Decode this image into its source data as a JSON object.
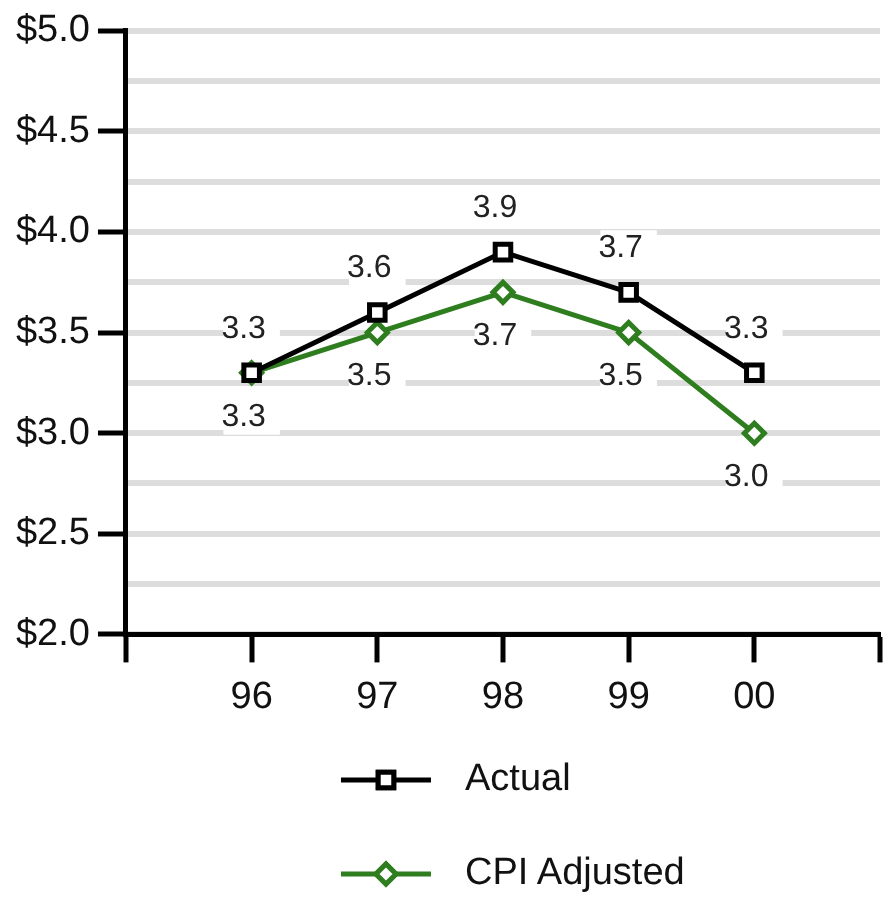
{
  "chart_data": {
    "type": "line",
    "categories": [
      "96",
      "97",
      "98",
      "99",
      "00"
    ],
    "series": [
      {
        "name": "Actual",
        "color": "#000000",
        "marker": "square",
        "values": [
          3.3,
          3.6,
          3.9,
          3.7,
          3.3
        ],
        "value_labels": [
          "3.3",
          "3.6",
          "3.9",
          "3.7",
          "3.3"
        ]
      },
      {
        "name": "CPI Adjusted",
        "color": "#2e7d1e",
        "marker": "diamond",
        "values": [
          3.3,
          3.5,
          3.7,
          3.5,
          3.0
        ],
        "value_labels": [
          "3.3",
          "3.5",
          "3.7",
          "3.5",
          "3.0"
        ]
      }
    ],
    "ylim": [
      2.0,
      5.0
    ],
    "yticks": [
      {
        "value": 2.0,
        "label": "$2.0"
      },
      {
        "value": 2.25,
        "label": null
      },
      {
        "value": 2.5,
        "label": "$2.5"
      },
      {
        "value": 2.75,
        "label": null
      },
      {
        "value": 3.0,
        "label": "$3.0"
      },
      {
        "value": 3.25,
        "label": null
      },
      {
        "value": 3.5,
        "label": "$3.5"
      },
      {
        "value": 3.75,
        "label": null
      },
      {
        "value": 4.0,
        "label": "$4.0"
      },
      {
        "value": 4.25,
        "label": null
      },
      {
        "value": 4.5,
        "label": "$4.5"
      },
      {
        "value": 4.75,
        "label": null
      },
      {
        "value": 5.0,
        "label": "$5.0"
      }
    ],
    "grid": "y",
    "legend": "bottom",
    "line_style": "solid"
  }
}
